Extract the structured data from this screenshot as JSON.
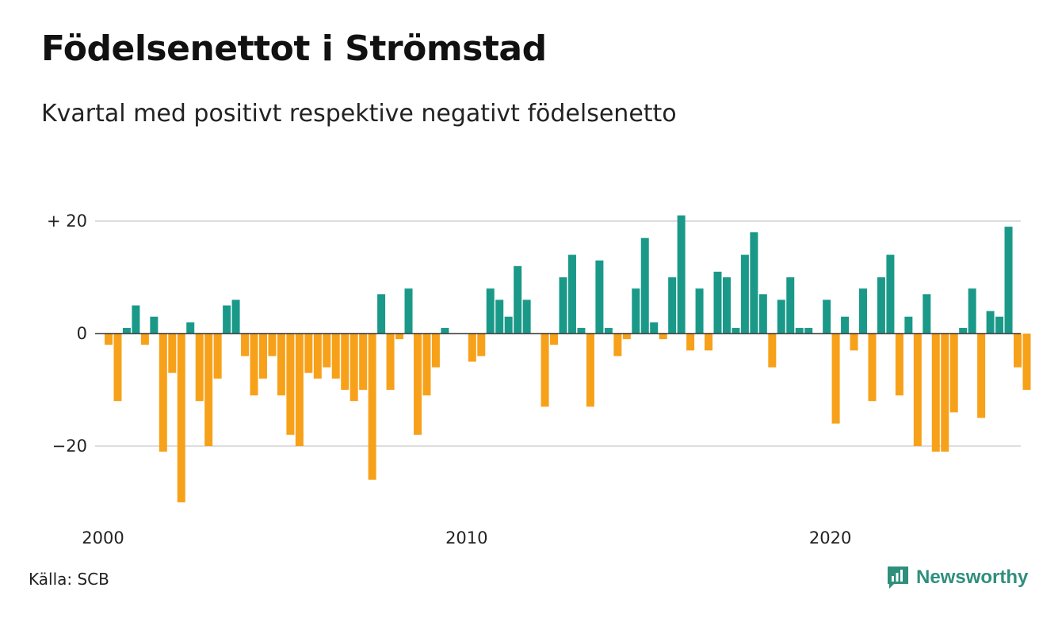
{
  "title": "Födelsenettot i Strömstad",
  "subtitle": "Kvartal med positivt respektive negativt födelsenetto",
  "source": "Källa: SCB",
  "brand": {
    "name": "Newsworthy",
    "icon": "newsworthy-logo-icon"
  },
  "colors": {
    "positive": "#1a9989",
    "negative": "#f7a11a",
    "grid": "#dddddd",
    "zero": "#333333"
  },
  "chart_data": {
    "type": "bar",
    "xlabel": "",
    "ylabel": "",
    "ylim": [
      -32,
      22
    ],
    "x_start": "2000-Q1",
    "y_ticks": [
      {
        "value": 20,
        "label": "+ 20"
      },
      {
        "value": 0,
        "label": "0"
      },
      {
        "value": -20,
        "label": "−20"
      }
    ],
    "x_ticks": [
      {
        "index": 0,
        "label": "2000"
      },
      {
        "index": 40,
        "label": "2010"
      },
      {
        "index": 80,
        "label": "2020"
      }
    ],
    "values": [
      -2,
      -12,
      1,
      5,
      -2,
      3,
      -21,
      -7,
      -30,
      2,
      -12,
      -20,
      -8,
      5,
      6,
      -4,
      -11,
      -8,
      -4,
      -11,
      -18,
      -20,
      -7,
      -8,
      -6,
      -8,
      -10,
      -12,
      -10,
      -26,
      7,
      -10,
      -1,
      8,
      -18,
      -11,
      -6,
      1,
      0,
      0,
      -5,
      -4,
      8,
      6,
      3,
      12,
      6,
      0,
      -13,
      -2,
      10,
      14,
      1,
      -13,
      13,
      1,
      -4,
      -1,
      8,
      17,
      2,
      -1,
      10,
      21,
      -3,
      8,
      -3,
      11,
      10,
      1,
      14,
      18,
      7,
      -6,
      6,
      10,
      1,
      1,
      0,
      6,
      -16,
      3,
      -3,
      8,
      -12,
      10,
      14,
      -11,
      3,
      -20,
      7,
      -21,
      -21,
      -14,
      1,
      8,
      -15,
      4,
      3,
      19,
      -6,
      -10
    ]
  }
}
